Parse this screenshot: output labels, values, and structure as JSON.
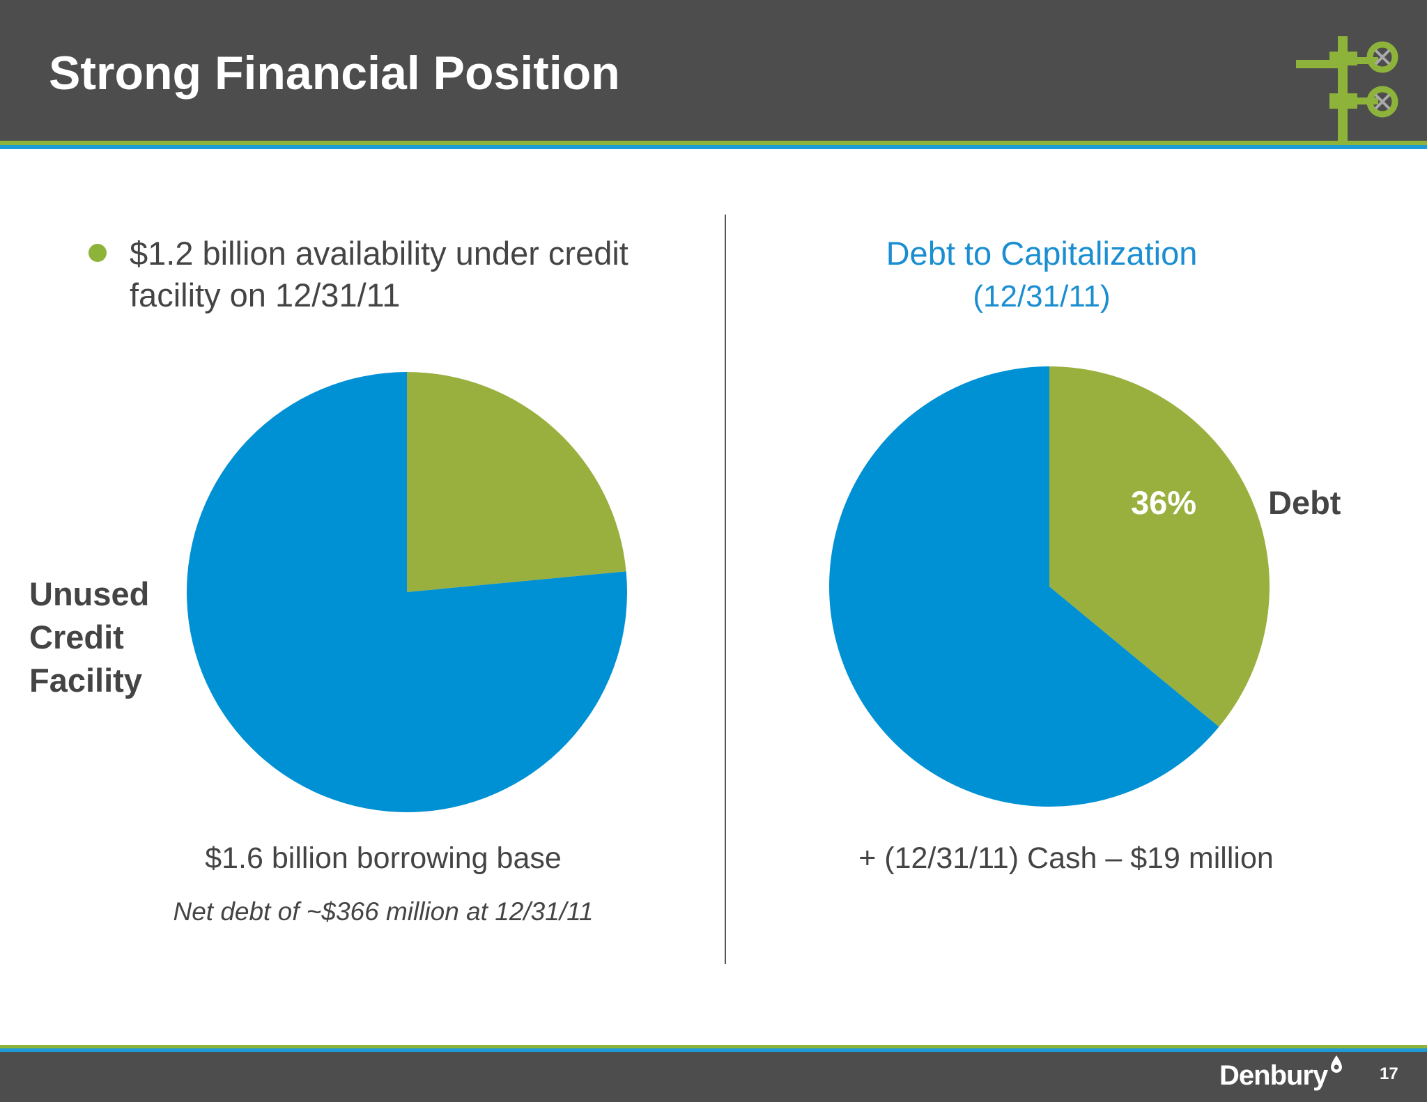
{
  "header": {
    "title": "Strong Financial Position"
  },
  "left_panel": {
    "bullet": "$1.2 billion availability under credit facility on 12/31/11",
    "unused_label": "Unused Credit Facility",
    "caption": "$1.6 billion borrowing base",
    "note": "Net debt of ~$366 million at 12/31/11"
  },
  "right_panel": {
    "heading": "Debt to Capitalization",
    "subheading": "(12/31/11)",
    "pct_label": "36%",
    "debt_label": "Debt",
    "caption": "+ (12/31/11) Cash – $19 million"
  },
  "footer": {
    "brand": "Denbury",
    "page_number": "17"
  },
  "colors": {
    "green": "#99b03e",
    "blue": "#0090d4",
    "dark_gray": "#4d4d4d"
  },
  "icons": {
    "logo": "wellhead-valve-icon",
    "brand_mark": "drop-icon"
  },
  "chart_data": [
    {
      "type": "pie",
      "title": "",
      "labels": [
        "",
        "Unused Credit Facility"
      ],
      "values": [
        0.235,
        0.765
      ],
      "colors": [
        "#99b03e",
        "#0090d4"
      ]
    },
    {
      "type": "pie",
      "title": "Debt to Capitalization",
      "subtitle": "(12/31/11)",
      "labels": [
        "Debt",
        ""
      ],
      "values": [
        0.36,
        0.64
      ],
      "colors": [
        "#99b03e",
        "#0090d4"
      ]
    }
  ]
}
